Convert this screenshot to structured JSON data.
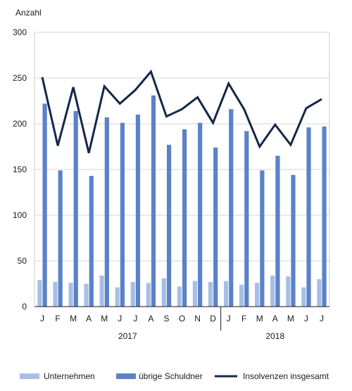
{
  "chart_data": {
    "type": "bar",
    "ylabel": "Anzahl",
    "ylim": [
      0,
      300
    ],
    "yticks": [
      0,
      50,
      100,
      150,
      200,
      250,
      300
    ],
    "grid": "horizontal",
    "legend_position": "bottom",
    "categories": [
      "J",
      "F",
      "M",
      "A",
      "M",
      "J",
      "J",
      "A",
      "S",
      "O",
      "N",
      "D",
      "J",
      "F",
      "M",
      "A",
      "M",
      "J",
      "J"
    ],
    "years": [
      {
        "label": "2017",
        "start": 0,
        "end": 11
      },
      {
        "label": "2018",
        "start": 12,
        "end": 18
      }
    ],
    "series": [
      {
        "name": "Unternehmen",
        "kind": "bar",
        "color": "#a7bfe6",
        "values": [
          29,
          27,
          26,
          25,
          34,
          21,
          27,
          26,
          31,
          22,
          28,
          27,
          28,
          24,
          26,
          34,
          33,
          21,
          30
        ]
      },
      {
        "name": "übrige Schuldner",
        "kind": "bar",
        "color": "#5b82c8",
        "values": [
          222,
          149,
          214,
          143,
          207,
          201,
          210,
          231,
          177,
          194,
          201,
          174,
          216,
          192,
          149,
          165,
          144,
          196,
          197
        ]
      },
      {
        "name": "Insolvenzen insgesamt",
        "kind": "line",
        "color": "#16264a",
        "values": [
          251,
          176,
          240,
          168,
          241,
          222,
          237,
          257,
          208,
          216,
          229,
          201,
          244,
          216,
          175,
          199,
          177,
          217,
          227
        ]
      }
    ]
  }
}
